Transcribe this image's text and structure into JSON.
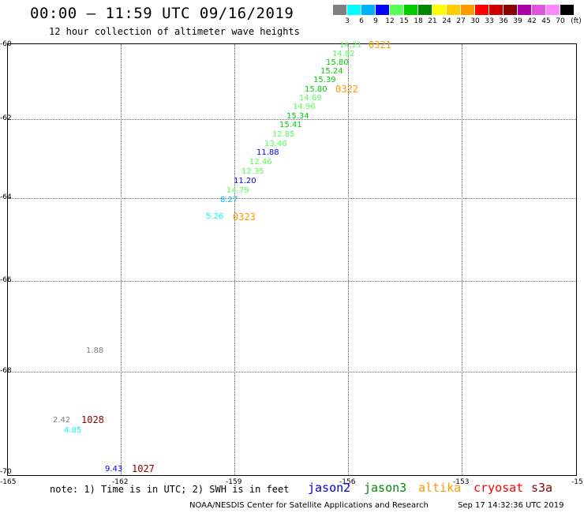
{
  "header": {
    "title": "00:00 – 11:59 UTC 09/16/2019",
    "subtitle": "12 hour collection of altimeter wave heights"
  },
  "legend": {
    "units": "(ft)",
    "colors": [
      "#808080",
      "#00ffff",
      "#00b0ff",
      "#0000ff",
      "#55ff55",
      "#00cc00",
      "#008800",
      "#ffff00",
      "#ffcc00",
      "#ff9900",
      "#ff0000",
      "#cc0000",
      "#880000",
      "#aa00aa",
      "#dd55dd",
      "#ff88ff",
      "#000000"
    ],
    "labels": [
      "3",
      "6",
      "9",
      "12",
      "15",
      "18",
      "21",
      "24",
      "27",
      "30",
      "33",
      "36",
      "39",
      "42",
      "45",
      "70"
    ]
  },
  "axes": {
    "lat_labels": [
      "-60",
      "-62",
      "-64",
      "-66",
      "-68",
      "-70"
    ],
    "lon_labels": [
      "-165",
      "-162",
      "-159",
      "-156",
      "-153",
      "-15"
    ]
  },
  "observations": [
    {
      "v": "14.21",
      "c": "#55ff55"
    },
    {
      "v": "14.82",
      "c": "#55ff55"
    },
    {
      "v": "15.80",
      "c": "#00cc00"
    },
    {
      "v": "15.24",
      "c": "#00cc00"
    },
    {
      "v": "15.39",
      "c": "#00cc00"
    },
    {
      "v": "15.80",
      "c": "#00cc00"
    },
    {
      "v": "14.69",
      "c": "#55ff55"
    },
    {
      "v": "14.96",
      "c": "#55ff55"
    },
    {
      "v": "15.34",
      "c": "#00cc00"
    },
    {
      "v": "15.41",
      "c": "#00cc00"
    },
    {
      "v": "12.85",
      "c": "#55ff55"
    },
    {
      "v": "13.46",
      "c": "#55ff55"
    },
    {
      "v": "11.88",
      "c": "#0000ff"
    },
    {
      "v": "12.46",
      "c": "#55ff55"
    },
    {
      "v": "12.35",
      "c": "#55ff55"
    },
    {
      "v": "11.20",
      "c": "#0000ff"
    },
    {
      "v": "14.79",
      "c": "#55ff55"
    },
    {
      "v": "8.27",
      "c": "#00b0ff"
    },
    {
      "v": "5.26",
      "c": "#00ffff"
    },
    {
      "v": "1.88",
      "c": "#808080"
    },
    {
      "v": "2.42",
      "c": "#808080"
    },
    {
      "v": "4.85",
      "c": "#00ffff"
    },
    {
      "v": "9.43",
      "c": "#0000ff"
    }
  ],
  "time_tags": [
    {
      "v": "0321",
      "c": "#ff9900"
    },
    {
      "v": "0322",
      "c": "#ff9900"
    },
    {
      "v": "0323",
      "c": "#ff9900"
    },
    {
      "v": "1028",
      "c": "#880000"
    },
    {
      "v": "1027",
      "c": "#880000"
    }
  ],
  "footer": {
    "note": "note: 1) Time is in UTC; 2) SWH is in feet",
    "satellites": [
      {
        "name": "jason2",
        "color": "#0000cc"
      },
      {
        "name": "jason3",
        "color": "#008800"
      },
      {
        "name": "altika",
        "color": "#ff9900"
      },
      {
        "name": "cryosat",
        "color": "#ff0000"
      },
      {
        "name": "s3a",
        "color": "#880000"
      }
    ],
    "credit": "NOAA/NESDIS Center for Satellite Applications and Research",
    "timestamp": "Sep 17 14:32:36 UTC 2019"
  }
}
